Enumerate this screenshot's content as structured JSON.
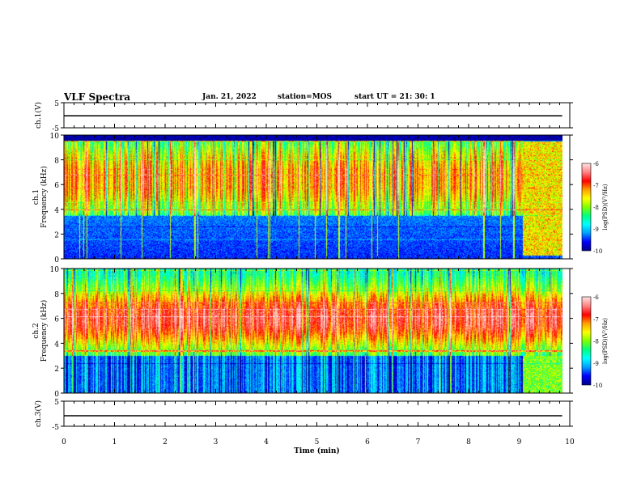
{
  "header": {
    "title": "VLF Spectra",
    "date": "Jan. 21, 2022",
    "station": "station=MOS",
    "start_ut": "start  UT  =   21: 30: 1"
  },
  "chart_data": [
    {
      "id": "ch1-voltage",
      "type": "line",
      "ylabel": "ch.1(V)",
      "ylim": [
        -5,
        5
      ],
      "yticks": [
        "5",
        "-5"
      ],
      "x": [
        0,
        10
      ],
      "y": [
        -0.2,
        -0.2
      ],
      "line_color": "#000000"
    },
    {
      "id": "ch1-spectrogram",
      "type": "heatmap",
      "ylabel": "ch.1\nFrequency (kHz)",
      "ylabel_top": "ch.1",
      "ylabel_bottom": "Frequency (kHz)",
      "xlim": [
        0,
        9.85
      ],
      "ylim": [
        0,
        10
      ],
      "yticks": [
        "0",
        "2",
        "4",
        "6",
        "8",
        "10"
      ],
      "description_band_peak_khz": [
        6,
        9
      ],
      "colorbar": {
        "label": "log(PSD)(V²/Hz)",
        "range": [
          -10,
          -6
        ],
        "ticks": [
          "-6",
          "-7",
          "-8",
          "-9",
          "-10"
        ]
      }
    },
    {
      "id": "ch2-spectrogram",
      "type": "heatmap",
      "ylabel": "ch.2\nFrequency (kHz)",
      "ylabel_top": "ch.2",
      "ylabel_bottom": "Frequency (kHz)",
      "xlim": [
        0,
        9.85
      ],
      "ylim": [
        0,
        10
      ],
      "yticks": [
        "0",
        "2",
        "4",
        "6",
        "8",
        "10"
      ],
      "colorbar": {
        "label": "log(PSD)(V²/Hz)",
        "range": [
          -10,
          -6
        ],
        "ticks": [
          "-6",
          "-7",
          "-8",
          "-9",
          "-10"
        ]
      }
    },
    {
      "id": "ch3-voltage",
      "type": "line",
      "ylabel": "ch.3(V)",
      "ylim": [
        -5,
        5
      ],
      "yticks": [
        "5",
        "-5"
      ],
      "x": [
        0,
        10
      ],
      "y": [
        -0.8,
        -0.8
      ],
      "line_color": "#000000"
    }
  ],
  "xaxis": {
    "label": "Time  (min)",
    "range": [
      0,
      10
    ],
    "ticks": [
      "0",
      "1",
      "2",
      "3",
      "4",
      "5",
      "6",
      "7",
      "8",
      "9",
      "10"
    ]
  },
  "colors": {
    "colormap": [
      "#00008c",
      "#0000ff",
      "#00a0ff",
      "#00ffff",
      "#00ff80",
      "#80ff00",
      "#ffff00",
      "#ffa000",
      "#ff0000",
      "#ff8080",
      "#ffe0e0"
    ]
  }
}
